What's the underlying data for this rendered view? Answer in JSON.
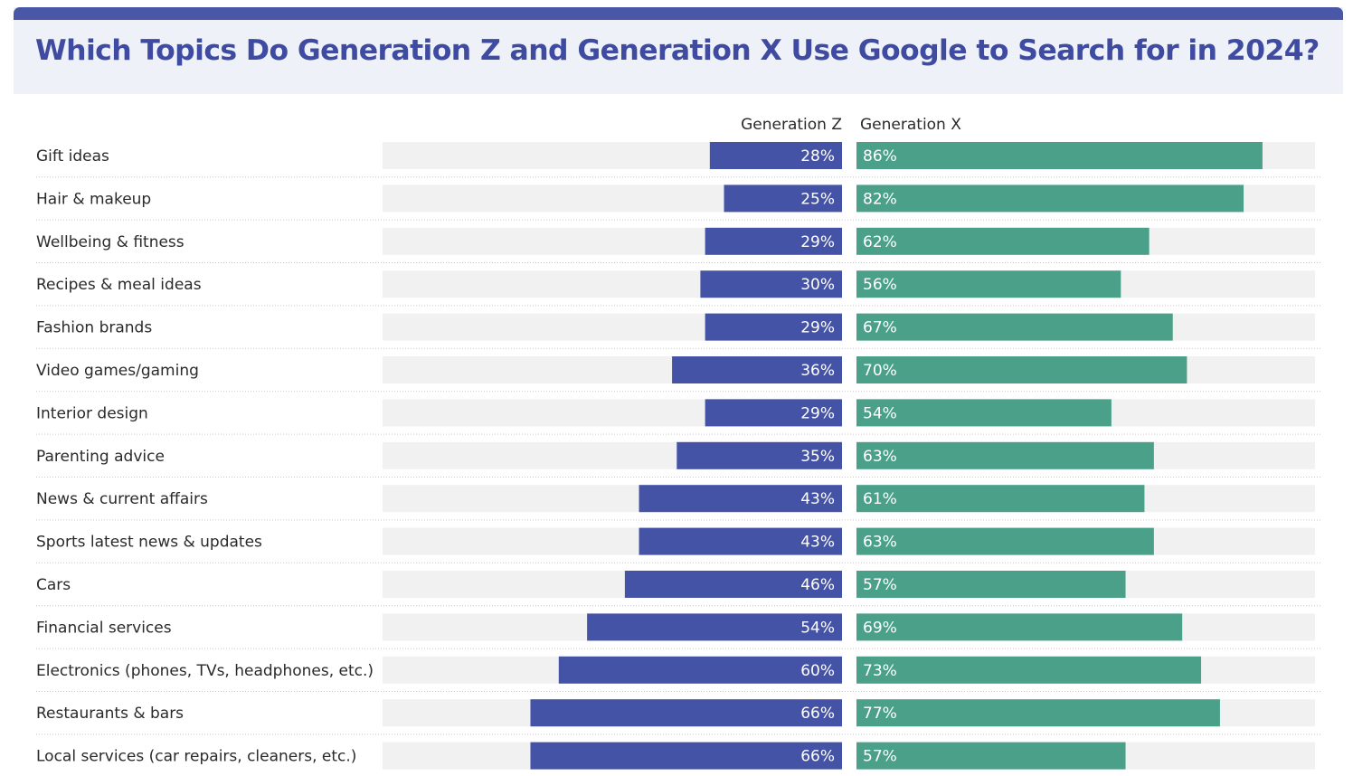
{
  "title": "Which Topics Do Generation Z and Generation X Use Google to Search for in 2024?",
  "colors": {
    "header_bar": "#4a57a6",
    "header_bg": "#eef1f8",
    "title": "#3e4ba0",
    "gen_z": "#4553a6",
    "gen_x": "#4ba08a",
    "track": "#f1f1f1",
    "divider": "#c9c9c9"
  },
  "chart_data": {
    "type": "bar",
    "orientation": "horizontal-diverging",
    "value_unit": "%",
    "xlim": [
      0,
      100
    ],
    "legend_placement": "top-center",
    "grid": false,
    "categories": [
      "Gift ideas",
      "Hair & makeup",
      "Wellbeing & fitness",
      "Recipes & meal ideas",
      "Fashion brands",
      "Video games/gaming",
      "Interior design",
      "Parenting advice",
      "News & current affairs",
      "Sports latest news & updates",
      "Cars",
      "Financial services",
      "Electronics (phones, TVs, headphones, etc.)",
      "Restaurants & bars",
      "Local services (car repairs, cleaners, etc.)"
    ],
    "series": [
      {
        "name": "Generation Z",
        "side": "left",
        "values": [
          28,
          25,
          29,
          30,
          29,
          36,
          29,
          35,
          43,
          43,
          46,
          54,
          60,
          66,
          66
        ]
      },
      {
        "name": "Generation X",
        "side": "right",
        "values": [
          86,
          82,
          62,
          56,
          67,
          70,
          54,
          63,
          61,
          63,
          57,
          69,
          73,
          77,
          57
        ]
      }
    ]
  }
}
